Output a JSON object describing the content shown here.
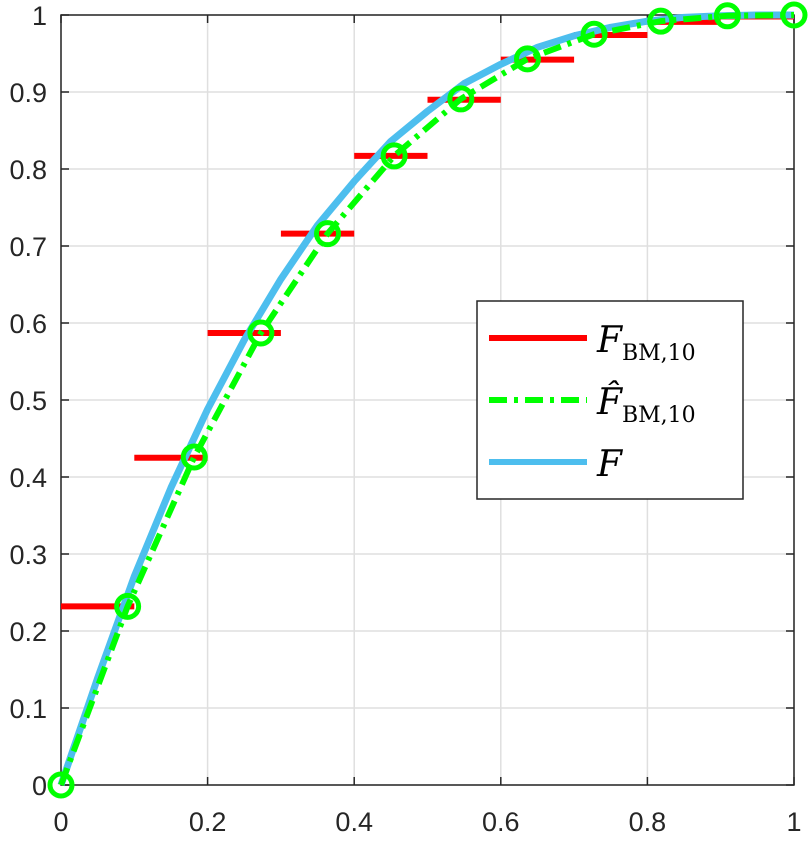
{
  "chart_data": {
    "type": "line",
    "title": "",
    "xlabel": "",
    "ylabel": "",
    "xlim": [
      0,
      1
    ],
    "ylim": [
      0,
      1
    ],
    "grid": true,
    "legend_position": "center-right",
    "x_ticks": [
      "0",
      "0.2",
      "0.4",
      "0.6",
      "0.8",
      "1"
    ],
    "y_ticks": [
      "0",
      "0.1",
      "0.2",
      "0.3",
      "0.4",
      "0.5",
      "0.6",
      "0.7",
      "0.8",
      "0.9",
      "1"
    ],
    "series": [
      {
        "name": "F_BM,10",
        "legend_main": "F",
        "legend_sub": "BM,10",
        "style": "step",
        "color": "#ff0000",
        "segments": [
          {
            "x0": 0.0,
            "x1": 0.1,
            "y": 0.232
          },
          {
            "x0": 0.1,
            "x1": 0.2,
            "y": 0.425
          },
          {
            "x0": 0.2,
            "x1": 0.3,
            "y": 0.587
          },
          {
            "x0": 0.3,
            "x1": 0.4,
            "y": 0.716
          },
          {
            "x0": 0.4,
            "x1": 0.5,
            "y": 0.817
          },
          {
            "x0": 0.5,
            "x1": 0.6,
            "y": 0.89
          },
          {
            "x0": 0.6,
            "x1": 0.7,
            "y": 0.942
          },
          {
            "x0": 0.7,
            "x1": 0.8,
            "y": 0.974
          },
          {
            "x0": 0.8,
            "x1": 0.9,
            "y": 0.991
          },
          {
            "x0": 0.9,
            "x1": 1.0,
            "y": 0.998
          }
        ]
      },
      {
        "name": "F̂_BM,10",
        "legend_main": "F̂",
        "legend_sub": "BM,10",
        "style": "dash-dot with circle markers",
        "color": "#00ff00",
        "x": [
          0,
          0.0909,
          0.1818,
          0.2727,
          0.3636,
          0.4545,
          0.5455,
          0.6364,
          0.7273,
          0.8182,
          0.9091,
          1.0
        ],
        "y": [
          0,
          0.232,
          0.426,
          0.587,
          0.716,
          0.817,
          0.891,
          0.943,
          0.975,
          0.992,
          0.999,
          1.0
        ]
      },
      {
        "name": "F",
        "legend_main": "F",
        "legend_sub": "",
        "style": "solid",
        "color": "#4dbeee",
        "x": [
          0,
          0.05,
          0.1,
          0.15,
          0.2,
          0.25,
          0.3,
          0.35,
          0.4,
          0.45,
          0.5,
          0.55,
          0.6,
          0.65,
          0.7,
          0.75,
          0.8,
          0.85,
          0.9,
          0.95,
          1.0
        ],
        "y": [
          0,
          0.139,
          0.271,
          0.386,
          0.488,
          0.578,
          0.657,
          0.727,
          0.784,
          0.836,
          0.875,
          0.911,
          0.936,
          0.958,
          0.973,
          0.984,
          0.992,
          0.997,
          0.999,
          1.0,
          1.0
        ]
      }
    ]
  }
}
